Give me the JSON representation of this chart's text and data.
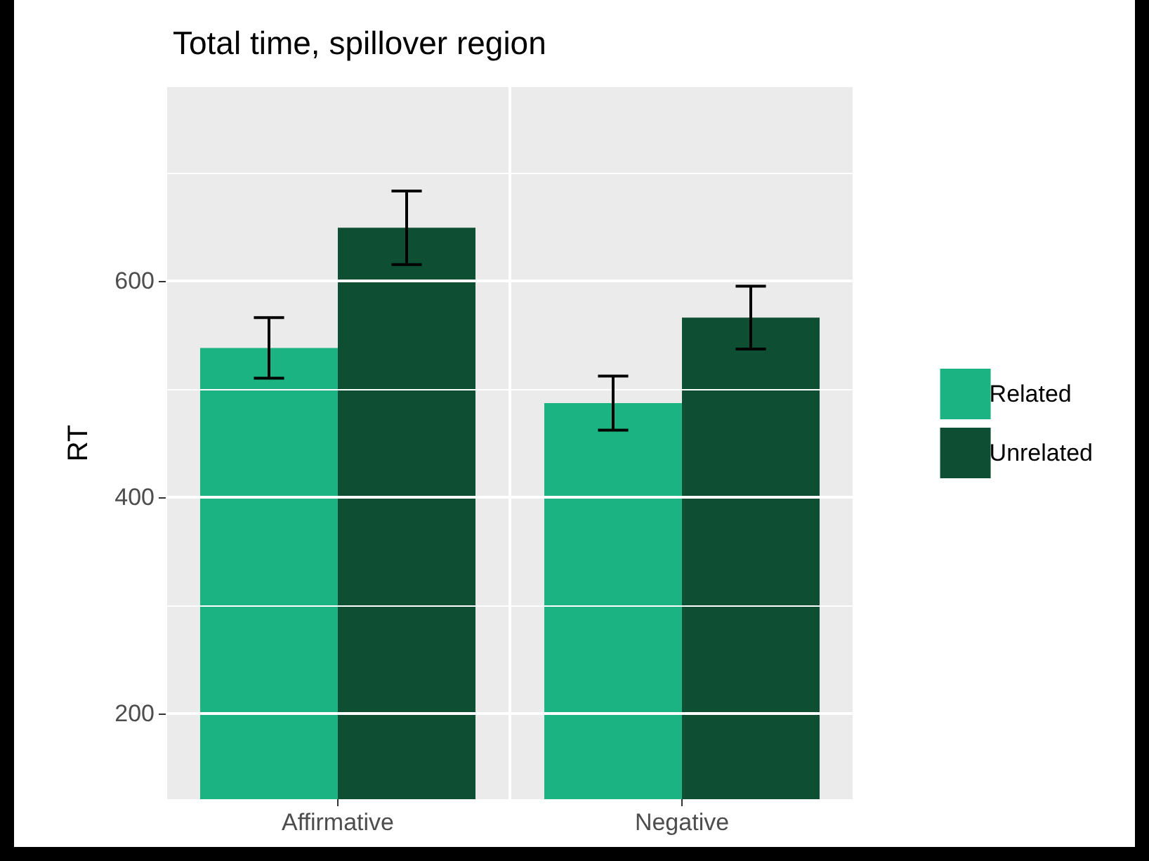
{
  "chart_data": {
    "type": "bar",
    "title": "Total time, spillover region",
    "ylabel": "RT",
    "categories": [
      "Affirmative",
      "Negative"
    ],
    "series": [
      {
        "name": "Related",
        "color": "#1bb381",
        "values": [
          538,
          487
        ],
        "errors": [
          28,
          25
        ]
      },
      {
        "name": "Unrelated",
        "color": "#0e4f33",
        "values": [
          649,
          566
        ],
        "errors": [
          34,
          29
        ]
      }
    ],
    "ylim": [
      121,
      779
    ],
    "yticks": [
      {
        "value": 200,
        "label": "200"
      },
      {
        "value": 300,
        "label": null
      },
      {
        "value": 400,
        "label": "400"
      },
      {
        "value": 500,
        "label": null
      },
      {
        "value": 600,
        "label": "600"
      },
      {
        "value": 700,
        "label": null
      }
    ],
    "grid": true,
    "legend": "right"
  }
}
